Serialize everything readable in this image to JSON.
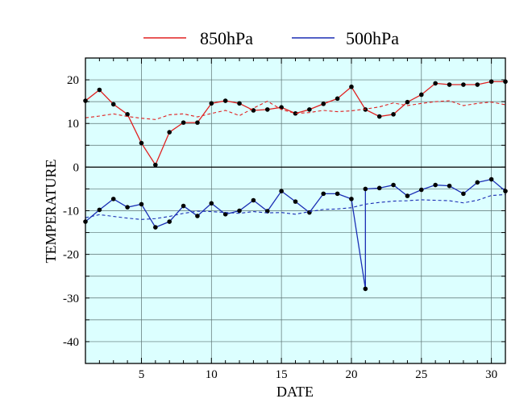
{
  "chart_data": {
    "type": "line",
    "xlabel": "DATE",
    "ylabel": "TEMPERATURE",
    "xlim": [
      1,
      31
    ],
    "ylim": [
      -45,
      25
    ],
    "xticks": [
      5,
      10,
      15,
      20,
      25,
      30
    ],
    "yticks": [
      20,
      10,
      0,
      -10,
      -20,
      -30,
      -40
    ],
    "grid": true,
    "legend_position": "top-center",
    "plot_background": "#dcffff",
    "x": [
      1,
      2,
      3,
      4,
      5,
      6,
      7,
      8,
      9,
      10,
      11,
      12,
      13,
      14,
      15,
      16,
      17,
      18,
      19,
      20,
      21,
      22,
      23,
      24,
      25,
      26,
      27,
      28,
      29,
      30,
      31
    ],
    "series": [
      {
        "name": "850hPa",
        "color": "#e02020",
        "style": "solid-with-markers",
        "values": [
          15.2,
          17.7,
          14.4,
          12.1,
          5.5,
          0.5,
          8.0,
          10.2,
          10.2,
          14.6,
          15.2,
          14.6,
          13.0,
          13.2,
          13.7,
          12.3,
          13.2,
          14.5,
          15.7,
          18.4,
          13.2,
          11.6,
          12.1,
          14.9,
          16.6,
          19.2,
          18.9,
          18.9,
          18.9,
          19.6,
          19.6
        ]
      },
      {
        "name": "850hPa-normal",
        "color": "#e02020",
        "style": "dashed",
        "values": [
          11.3,
          11.7,
          12.2,
          11.6,
          11.2,
          10.9,
          12.0,
          12.2,
          11.5,
          12.3,
          13.0,
          11.8,
          13.5,
          15.1,
          13.2,
          12.3,
          12.5,
          13.0,
          12.7,
          12.9,
          13.3,
          13.8,
          14.7,
          14.1,
          14.6,
          15.0,
          15.2,
          14.1,
          14.6,
          14.9,
          14.3
        ]
      },
      {
        "name": "500hPa",
        "color": "#1a2db4",
        "style": "solid-with-markers",
        "values": [
          -12.5,
          -9.8,
          -7.3,
          -9.2,
          -8.5,
          -13.8,
          -12.5,
          -8.9,
          -11.2,
          -8.3,
          -10.8,
          -10.0,
          -7.6,
          -10.1,
          -5.5,
          -7.9,
          -10.4,
          -6.1,
          -6.1,
          -7.3,
          -27.9,
          -5.0,
          -4.8,
          -4.1,
          -6.6,
          -5.2,
          -4.1,
          -4.3,
          -6.1,
          -3.5,
          -2.8,
          -5.5
        ],
        "x": [
          1,
          2,
          3,
          4,
          5,
          6,
          7,
          8,
          9,
          10,
          11,
          12,
          13,
          14,
          15,
          16,
          17,
          18,
          19,
          20,
          21,
          21,
          22,
          23,
          24,
          25,
          26,
          27,
          28,
          29,
          30,
          31
        ]
      },
      {
        "name": "500hPa-normal",
        "color": "#1a2db4",
        "style": "dashed",
        "values": [
          -11.6,
          -10.9,
          -11.3,
          -11.7,
          -12.0,
          -11.8,
          -11.3,
          -10.6,
          -10.1,
          -10.2,
          -10.4,
          -10.6,
          -10.2,
          -10.5,
          -10.4,
          -10.8,
          -10.2,
          -9.7,
          -9.6,
          -9.3,
          -8.5,
          -8.1,
          -7.8,
          -7.7,
          -7.5,
          -7.6,
          -7.7,
          -8.2,
          -7.6,
          -6.5,
          -6.3
        ]
      }
    ]
  },
  "legend": {
    "items": [
      {
        "label": "850hPa",
        "color": "#e02020"
      },
      {
        "label": "500hPa",
        "color": "#1a2db4"
      }
    ]
  }
}
